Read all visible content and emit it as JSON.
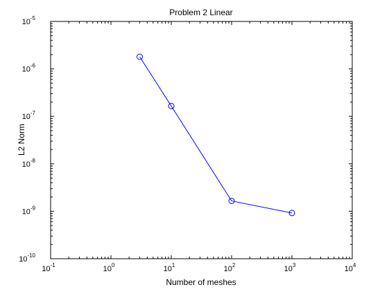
{
  "chart_data": {
    "type": "line",
    "title": "Problem 2 Linear",
    "xlabel": "Number of meshes",
    "ylabel": "L2 Norm",
    "xscale": "log",
    "yscale": "log",
    "xlim": [
      0.1,
      10000
    ],
    "ylim": [
      1e-10,
      1e-05
    ],
    "grid": false,
    "legend": "none",
    "x_ticks": [
      {
        "value": 0.1,
        "base": "10",
        "exp": "-1"
      },
      {
        "value": 1,
        "base": "10",
        "exp": "0"
      },
      {
        "value": 10,
        "base": "10",
        "exp": "1"
      },
      {
        "value": 100,
        "base": "10",
        "exp": "2"
      },
      {
        "value": 1000,
        "base": "10",
        "exp": "3"
      },
      {
        "value": 10000,
        "base": "10",
        "exp": "4"
      }
    ],
    "y_ticks": [
      {
        "value": 1e-10,
        "base": "10",
        "exp": "-10"
      },
      {
        "value": 1e-09,
        "base": "10",
        "exp": "-9"
      },
      {
        "value": 1e-08,
        "base": "10",
        "exp": "-8"
      },
      {
        "value": 1e-07,
        "base": "10",
        "exp": "-7"
      },
      {
        "value": 1e-06,
        "base": "10",
        "exp": "-6"
      },
      {
        "value": 1e-05,
        "base": "10",
        "exp": "-5"
      }
    ],
    "series": [
      {
        "color": "#0000ff",
        "marker": "circle",
        "x": [
          3,
          10,
          100,
          1000
        ],
        "y": [
          1.8e-06,
          1.65e-07,
          1.65e-09,
          9.2e-10
        ]
      }
    ]
  }
}
